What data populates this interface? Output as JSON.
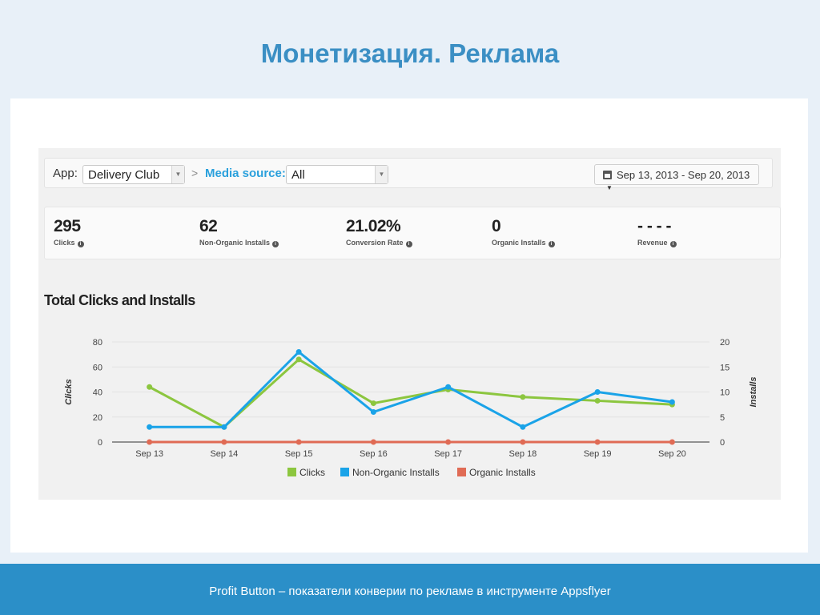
{
  "slide": {
    "title": "Монетизация. Реклама",
    "footer": "Profit Button – показатели конверии по рекламе в инструменте Appsflyer"
  },
  "toolbar": {
    "app_label": "App:",
    "app_value": "Delivery Club",
    "separator": ">",
    "media_label": "Media source:",
    "media_value": "All",
    "date_range": "Sep 13, 2013 - Sep 20, 2013",
    "calendar_icon": "calendar-icon"
  },
  "stats": [
    {
      "value": "295",
      "label": "Clicks"
    },
    {
      "value": "62",
      "label": "Non-Organic Installs"
    },
    {
      "value": "21.02%",
      "label": "Conversion Rate"
    },
    {
      "value": "0",
      "label": "Organic Installs"
    },
    {
      "value": "- - - -",
      "label": "Revenue"
    }
  ],
  "chart_data": {
    "type": "line",
    "title": "Total Clicks and Installs",
    "categories": [
      "Sep 13",
      "Sep 14",
      "Sep 15",
      "Sep 16",
      "Sep 17",
      "Sep 18",
      "Sep 19",
      "Sep 20"
    ],
    "ylabel": "Clicks",
    "y2label": "Installs",
    "ylim": [
      0,
      80
    ],
    "y2lim": [
      0,
      20
    ],
    "yticks": [
      "0",
      "20",
      "40",
      "60",
      "80"
    ],
    "y2ticks": [
      "0",
      "5",
      "10",
      "15",
      "20"
    ],
    "grid": true,
    "legend_position": "bottom",
    "series": [
      {
        "name": "Clicks",
        "axis": "left",
        "color": "#8cc63f",
        "values": [
          44,
          12,
          66,
          31,
          42,
          36,
          33,
          30
        ]
      },
      {
        "name": "Non-Organic Installs",
        "axis": "right",
        "color": "#1aa3e8",
        "values": [
          3,
          3,
          18,
          6,
          11,
          3,
          10,
          8
        ]
      },
      {
        "name": "Organic Installs",
        "axis": "right",
        "color": "#e06b55",
        "values": [
          0,
          0,
          0,
          0,
          0,
          0,
          0,
          0
        ]
      }
    ]
  }
}
